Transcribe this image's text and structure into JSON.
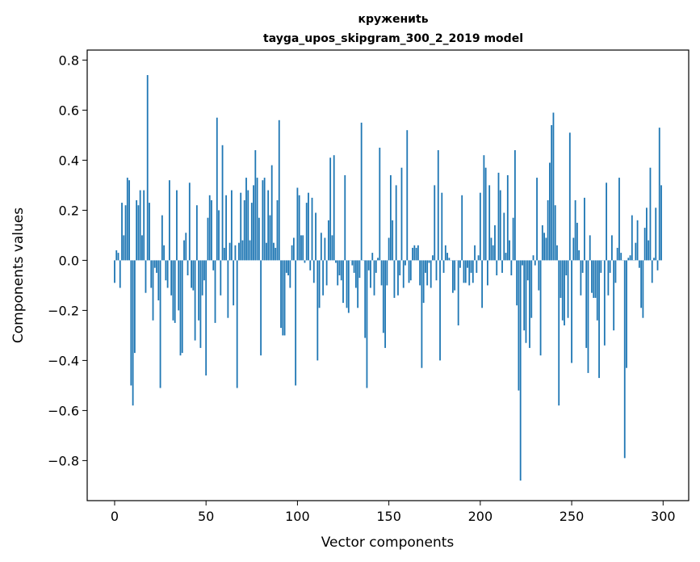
{
  "chart_data": {
    "type": "bar",
    "title": "кружениtь",
    "subtitle": "tayga_upos_skipgram_300_2_2019 model",
    "xlabel": "Vector components",
    "ylabel": "Components values",
    "xlim": [
      -15,
      314
    ],
    "ylim": [
      -0.96,
      0.84
    ],
    "xticks": [
      0,
      50,
      100,
      150,
      200,
      250,
      300
    ],
    "xtick_labels": [
      "0",
      "50",
      "100",
      "150",
      "200",
      "250",
      "300"
    ],
    "yticks": [
      -0.8,
      -0.6,
      -0.4,
      -0.2,
      0.0,
      0.2,
      0.4,
      0.6,
      0.8
    ],
    "ytick_labels": [
      "−0.8",
      "−0.6",
      "−0.4",
      "−0.2",
      "0.0",
      "0.2",
      "0.4",
      "0.6",
      "0.8"
    ],
    "grid": false,
    "legend": "none",
    "bar_color": "#1f77b4",
    "values": [
      -0.09,
      0.04,
      0.03,
      -0.11,
      0.23,
      0.1,
      0.22,
      0.33,
      0.32,
      -0.5,
      -0.58,
      -0.37,
      0.24,
      0.22,
      0.28,
      0.1,
      0.28,
      -0.13,
      0.74,
      0.23,
      -0.11,
      -0.24,
      -0.03,
      -0.05,
      -0.16,
      -0.51,
      0.18,
      0.06,
      -0.08,
      -0.11,
      0.32,
      -0.14,
      -0.24,
      -0.25,
      0.28,
      -0.2,
      -0.38,
      -0.37,
      0.08,
      0.11,
      -0.06,
      0.31,
      -0.11,
      -0.12,
      -0.32,
      0.22,
      -0.24,
      -0.35,
      -0.14,
      -0.08,
      -0.46,
      0.17,
      0.26,
      0.24,
      -0.04,
      -0.25,
      0.57,
      0.2,
      -0.14,
      0.46,
      0.05,
      0.26,
      -0.23,
      0.07,
      0.28,
      -0.18,
      0.06,
      -0.51,
      0.07,
      0.27,
      0.08,
      0.24,
      0.33,
      0.28,
      0.08,
      0.23,
      0.3,
      0.44,
      0.33,
      0.17,
      -0.38,
      0.32,
      0.33,
      0.07,
      0.28,
      0.18,
      0.38,
      0.07,
      0.05,
      0.24,
      0.56,
      -0.27,
      -0.3,
      -0.3,
      -0.05,
      -0.06,
      -0.11,
      0.06,
      0.09,
      -0.5,
      0.29,
      0.26,
      0.1,
      0.1,
      -0.01,
      0.23,
      0.27,
      -0.04,
      0.25,
      -0.09,
      0.19,
      -0.4,
      -0.19,
      0.11,
      -0.14,
      0.09,
      -0.1,
      0.16,
      0.41,
      0.1,
      0.42,
      -0.01,
      -0.1,
      -0.06,
      -0.08,
      -0.17,
      0.34,
      -0.19,
      -0.21,
      0.0,
      -0.02,
      -0.05,
      -0.11,
      -0.19,
      -0.07,
      0.55,
      0.0,
      -0.31,
      -0.51,
      -0.04,
      -0.11,
      0.03,
      -0.14,
      -0.05,
      0.01,
      0.45,
      -0.1,
      -0.29,
      -0.35,
      -0.1,
      0.09,
      0.34,
      0.16,
      -0.15,
      0.3,
      -0.14,
      -0.06,
      0.37,
      -0.11,
      -0.02,
      0.52,
      -0.09,
      -0.08,
      0.05,
      0.06,
      0.05,
      0.06,
      -0.1,
      -0.43,
      -0.17,
      -0.05,
      -0.1,
      -0.01,
      -0.11,
      0.02,
      0.3,
      -0.08,
      0.44,
      -0.4,
      0.27,
      -0.05,
      0.06,
      0.03,
      0.01,
      0.0,
      -0.13,
      -0.12,
      0.0,
      -0.26,
      -0.03,
      0.26,
      -0.09,
      -0.09,
      -0.03,
      -0.1,
      -0.05,
      -0.09,
      0.06,
      -0.05,
      0.02,
      0.27,
      -0.19,
      0.42,
      0.37,
      -0.1,
      0.3,
      0.09,
      0.06,
      0.14,
      -0.06,
      0.35,
      0.28,
      -0.05,
      0.19,
      0.03,
      0.34,
      0.08,
      -0.06,
      0.17,
      0.44,
      -0.18,
      -0.52,
      -0.88,
      -0.02,
      -0.28,
      -0.33,
      -0.08,
      -0.35,
      -0.23,
      0.02,
      -0.02,
      0.33,
      -0.12,
      -0.38,
      0.14,
      0.11,
      0.09,
      0.24,
      0.39,
      0.54,
      0.59,
      0.22,
      0.06,
      -0.58,
      -0.15,
      -0.24,
      -0.26,
      -0.06,
      -0.23,
      0.51,
      -0.41,
      0.09,
      0.24,
      0.15,
      0.04,
      -0.14,
      -0.05,
      0.25,
      -0.35,
      -0.45,
      0.1,
      -0.13,
      -0.15,
      -0.15,
      -0.24,
      -0.47,
      -0.05,
      0.0,
      -0.34,
      0.31,
      -0.14,
      -0.05,
      0.1,
      -0.28,
      -0.09,
      0.05,
      0.33,
      0.03,
      0.0,
      -0.79,
      -0.43,
      0.01,
      0.02,
      0.18,
      0.0,
      0.07,
      0.16,
      -0.03,
      -0.19,
      -0.23,
      0.13,
      0.21,
      0.08,
      0.37,
      -0.09,
      0.01,
      0.21,
      -0.04,
      0.53,
      0.3
    ]
  }
}
